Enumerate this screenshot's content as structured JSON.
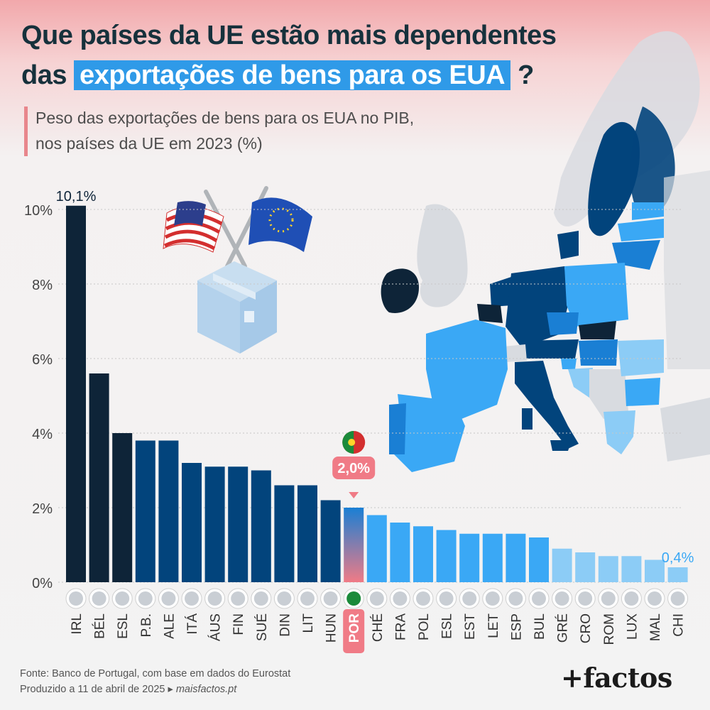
{
  "title": {
    "line1": "Que países da UE estão mais dependentes",
    "line2_prefix": "das",
    "line2_highlight": "exportações de bens para os EUA",
    "line2_suffix": "?"
  },
  "subtitle": {
    "line1": "Peso das exportações de bens para os EUA no PIB,",
    "line2": "nos países da UE em 2023 (%)"
  },
  "source": {
    "line1": "Fonte: Banco de Portugal, com base em dados do Eurostat",
    "line2_prefix": "Produzido a 11 de abril de 2025 ▸",
    "site": "maisfactos.pt"
  },
  "logo": "+factos",
  "chart_data": {
    "type": "bar",
    "categories": [
      "IRL",
      "BÉL",
      "ESL",
      "P.B.",
      "ALE",
      "ITÁ",
      "ÁUS",
      "FIN",
      "SUÉ",
      "DIN",
      "LIT",
      "HUN",
      "POR",
      "CHÉ",
      "FRA",
      "POL",
      "ESL",
      "EST",
      "LET",
      "ESP",
      "BUL",
      "GRÉ",
      "CRO",
      "ROM",
      "LUX",
      "MAL",
      "CHI"
    ],
    "values": [
      10.1,
      5.6,
      4.0,
      3.8,
      3.8,
      3.2,
      3.1,
      3.1,
      3.0,
      2.6,
      2.6,
      2.2,
      2.0,
      1.8,
      1.6,
      1.5,
      1.4,
      1.3,
      1.3,
      1.3,
      1.2,
      0.9,
      0.8,
      0.7,
      0.7,
      0.6,
      0.4
    ],
    "ylim": [
      0,
      10
    ],
    "yticks": [
      "0%",
      "2%",
      "4%",
      "6%",
      "8%",
      "10%"
    ],
    "data_labels": [
      {
        "index": 0,
        "text": "10,1%"
      },
      {
        "index": 12,
        "text": "2,0%"
      },
      {
        "index": 26,
        "text": "0,4%"
      }
    ],
    "highlight": {
      "index": 12,
      "label": "2,0%"
    },
    "grid": true,
    "colors": {
      "darkest": "#0e2438",
      "dark": "#02447c",
      "mid": "#1a7fd4",
      "light": "#3aa8f5",
      "lightest": "#8cccf6",
      "highlight": "#f07b86",
      "text": "#16313c"
    }
  }
}
